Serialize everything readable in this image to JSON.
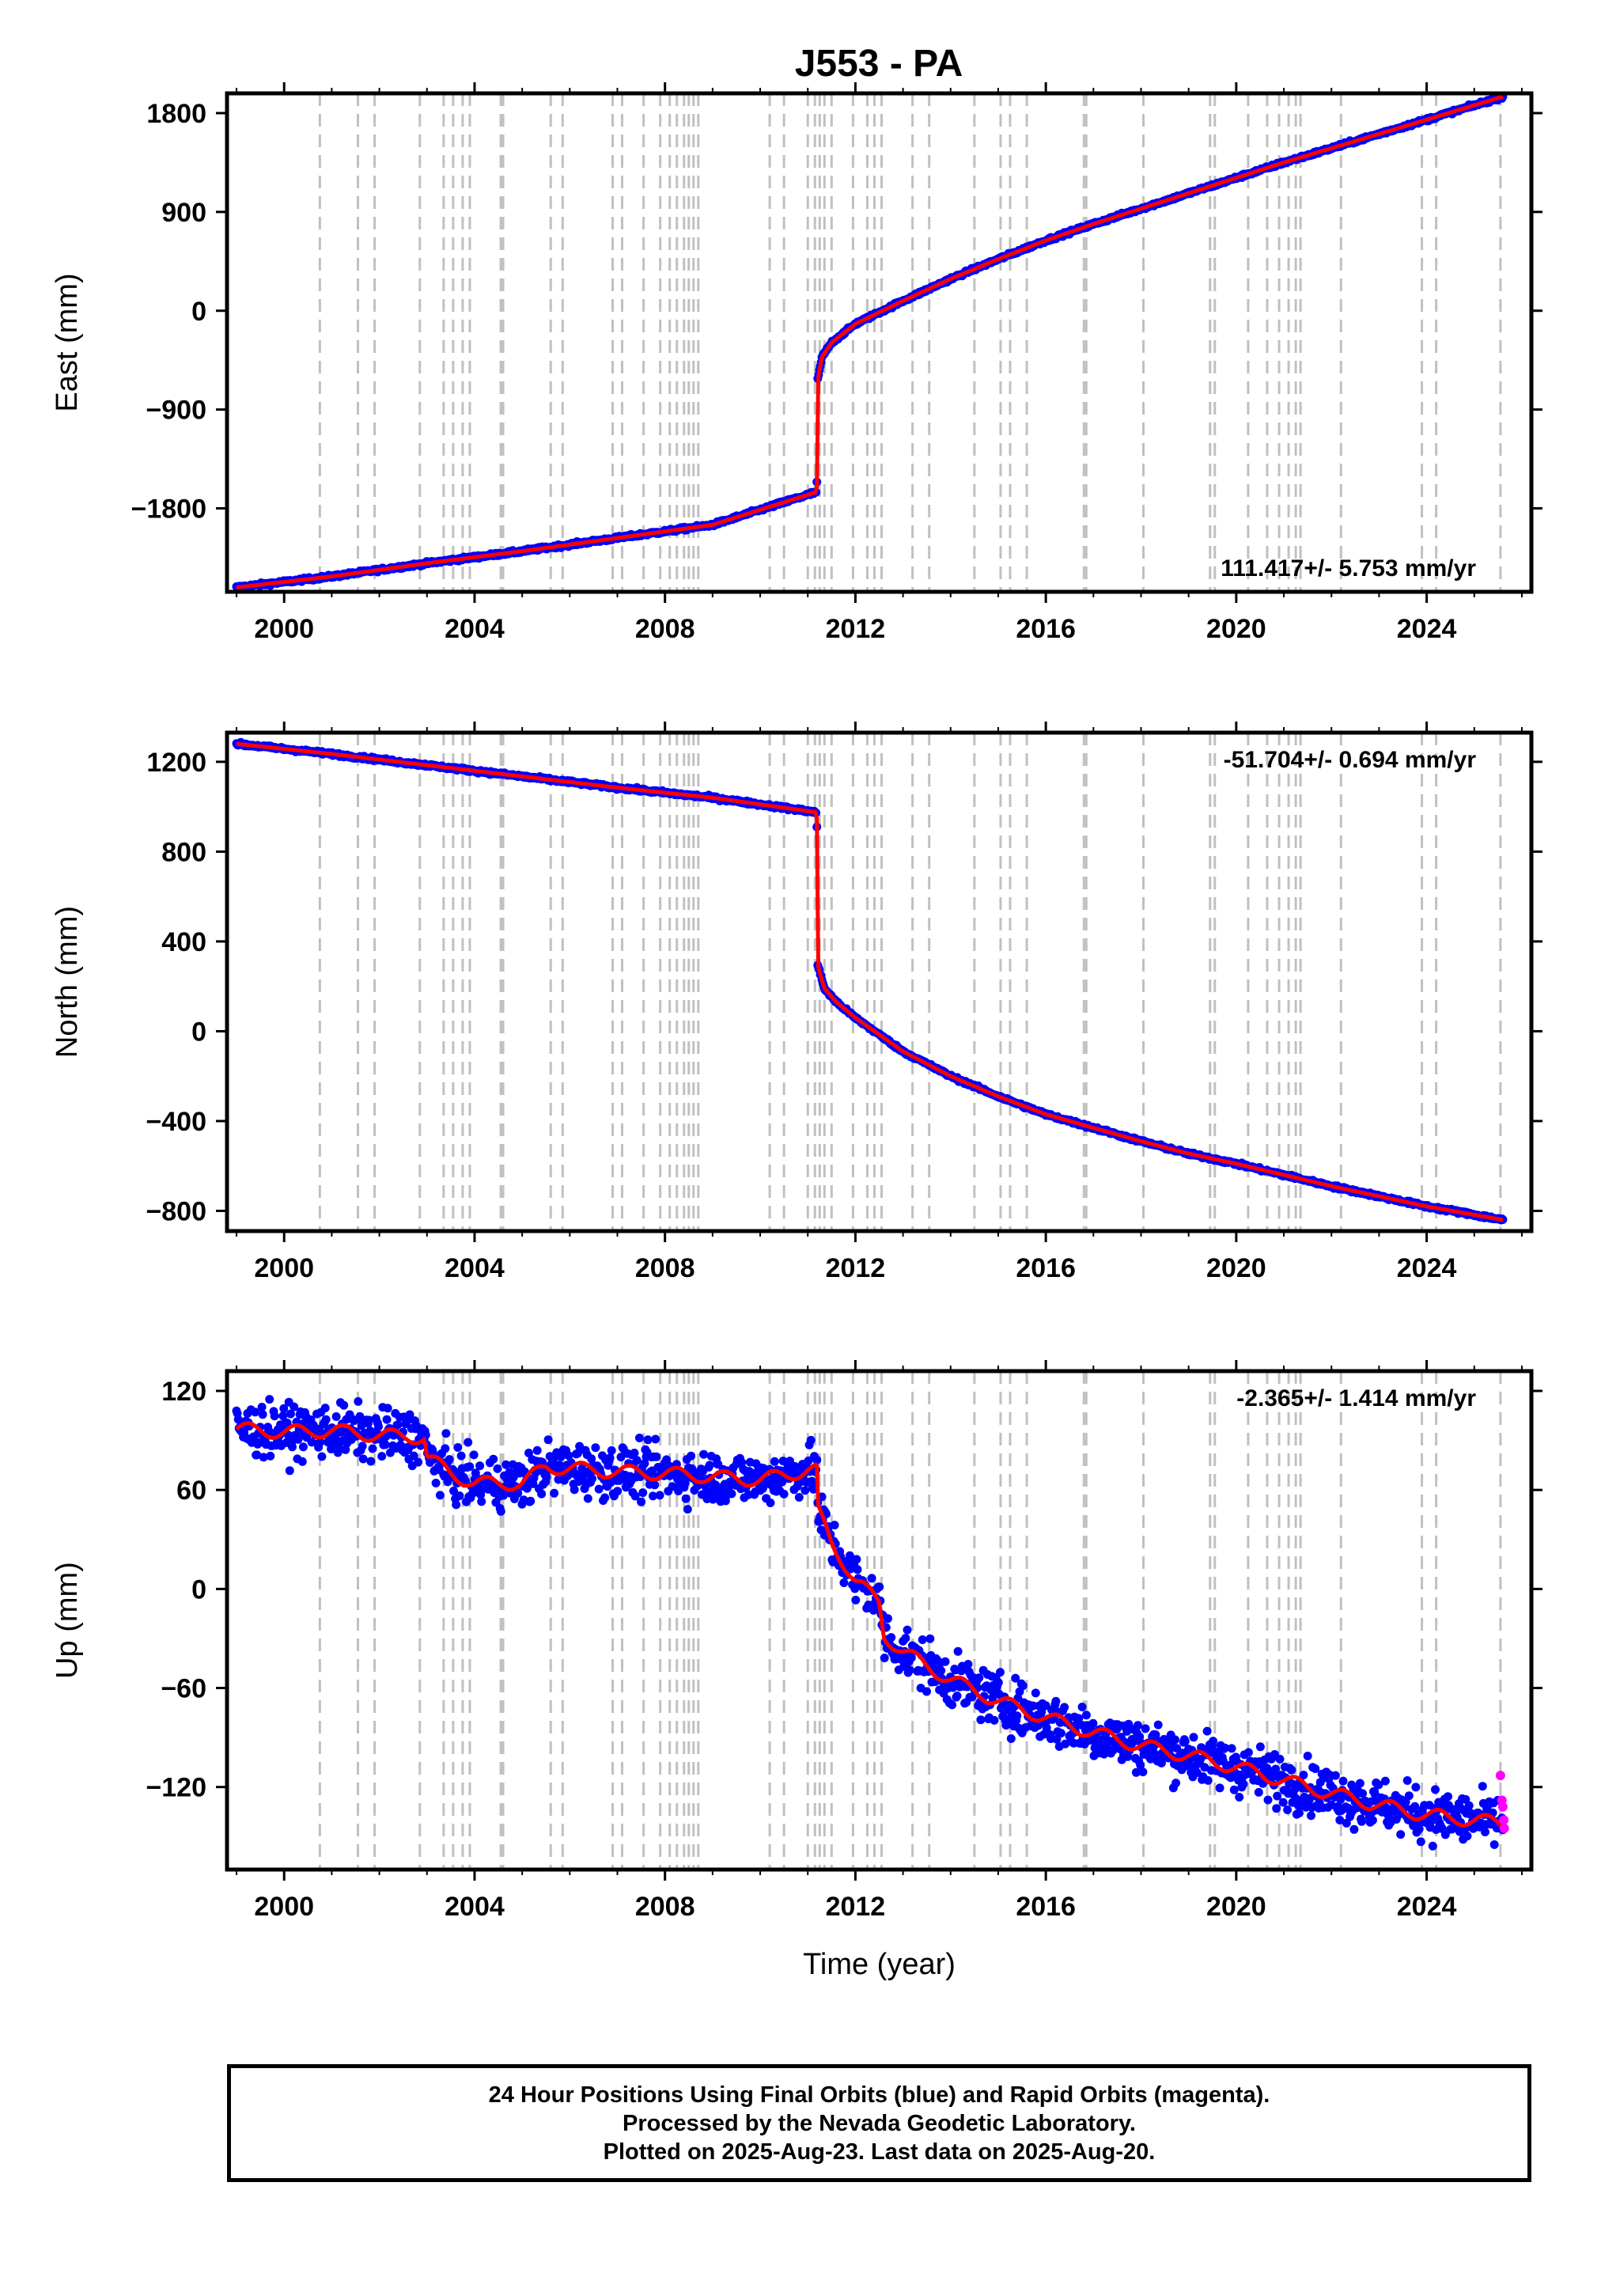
{
  "figure": {
    "title": "J553 - PA",
    "footer_lines": [
      "24 Hour Positions Using Final Orbits (blue) and Rapid Orbits (magenta).",
      "Processed by the Nevada Geodetic Laboratory.",
      "Plotted on 2025-Aug-23. Last data on 2025-Aug-20."
    ],
    "colors": {
      "final_orbits": "#0000ff",
      "rapid_orbits": "#ff00ff",
      "model": "#ff0000",
      "event_lines": "#c0c0c0"
    }
  },
  "chart_data": [
    {
      "type": "scatter",
      "id": "east",
      "ylabel": "East (mm)",
      "xlabel": "",
      "xlim": [
        1998.8,
        2026.2
      ],
      "ylim": [
        -2560,
        1980
      ],
      "xticks": [
        2000,
        2004,
        2008,
        2012,
        2016,
        2020,
        2024
      ],
      "yticks": [
        1800,
        900,
        0,
        -900,
        -1800
      ],
      "ytick_labels": [
        "1800",
        "900",
        "0",
        "−900",
        "−1800"
      ],
      "rate_label": "111.417+/- 5.753 mm/yr",
      "rate_position": "bottom-right",
      "noise": 10,
      "series": [
        {
          "x": [
            1999.0,
            2001.0,
            2003.0,
            2005.0,
            2007.0,
            2009.0,
            2011.19,
            2011.2,
            2011.3,
            2011.5,
            2012.0,
            2013.0,
            2014.0,
            2015.0,
            2016.0,
            2017.0,
            2018.0,
            2019.0,
            2020.0,
            2021.0,
            2022.0,
            2023.0,
            2024.0,
            2025.6
          ],
          "y": [
            -2520,
            -2420,
            -2300,
            -2190,
            -2070,
            -1950,
            -1650,
            -650,
            -420,
            -290,
            -120,
            90,
            290,
            470,
            640,
            790,
            930,
            1070,
            1210,
            1350,
            1480,
            1610,
            1740,
            1950
          ]
        }
      ]
    },
    {
      "type": "scatter",
      "id": "north",
      "ylabel": "North (mm)",
      "xlabel": "",
      "xlim": [
        1998.8,
        2026.2
      ],
      "ylim": [
        -890,
        1330
      ],
      "xticks": [
        2000,
        2004,
        2008,
        2012,
        2016,
        2020,
        2024
      ],
      "yticks": [
        1200,
        800,
        400,
        0,
        -400,
        -800
      ],
      "ytick_labels": [
        "1200",
        "800",
        "400",
        "0",
        "−400",
        "−800"
      ],
      "rate_label": "-51.704+/- 0.694 mm/yr",
      "rate_position": "top-right",
      "noise": 5,
      "series": [
        {
          "x": [
            1999.0,
            2001.0,
            2003.0,
            2005.0,
            2007.0,
            2009.0,
            2011.19,
            2011.2,
            2011.35,
            2011.6,
            2012.0,
            2013.0,
            2014.0,
            2015.0,
            2016.0,
            2017.0,
            2018.0,
            2019.0,
            2020.0,
            2021.0,
            2022.0,
            2023.0,
            2024.0,
            2025.6
          ],
          "y": [
            1280,
            1235,
            1185,
            1135,
            1085,
            1040,
            975,
            300,
            190,
            130,
            60,
            -90,
            -200,
            -290,
            -370,
            -430,
            -490,
            -545,
            -590,
            -640,
            -690,
            -735,
            -780,
            -840
          ]
        }
      ]
    },
    {
      "type": "scatter",
      "id": "up",
      "ylabel": "Up (mm)",
      "xlabel": "Time (year)",
      "xlim": [
        1998.8,
        2026.2
      ],
      "ylim": [
        -170,
        132
      ],
      "xticks": [
        2000,
        2004,
        2008,
        2012,
        2016,
        2020,
        2024
      ],
      "yticks": [
        120,
        60,
        0,
        -60,
        -120
      ],
      "ytick_labels": [
        "120",
        "60",
        "0",
        "−60",
        "−120"
      ],
      "rate_label": "-2.365+/- 1.414 mm/yr",
      "rate_position": "top-right",
      "noise": 11,
      "series": [
        {
          "x": [
            1999.0,
            2000.0,
            2001.0,
            2002.0,
            2002.95,
            2003.0,
            2003.5,
            2004.0,
            2005.0,
            2005.5,
            2006.0,
            2007.0,
            2008.0,
            2009.0,
            2010.0,
            2011.0,
            2011.19,
            2011.2,
            2011.5,
            2012.0,
            2012.5,
            2012.6,
            2013.0,
            2014.0,
            2015.0,
            2016.0,
            2017.0,
            2018.0,
            2019.0,
            2020.0,
            2021.0,
            2022.0,
            2023.0,
            2024.0,
            2025.6
          ],
          "y": [
            97,
            95,
            96,
            93,
            92,
            80,
            70,
            64,
            64,
            74,
            73,
            71,
            70,
            68,
            66,
            72,
            72,
            48,
            28,
            5,
            -8,
            -28,
            -38,
            -55,
            -68,
            -78,
            -87,
            -95,
            -101,
            -108,
            -116,
            -124,
            -131,
            -137,
            -142
          ]
        }
      ],
      "rapid_points": {
        "x": [
          2025.55,
          2025.58,
          2025.6,
          2025.62,
          2025.63
        ],
        "y": [
          -113,
          -128,
          -132,
          -140,
          -145
        ]
      }
    }
  ],
  "event_lines": [
    2000.75,
    2001.55,
    2001.9,
    2002.85,
    2003.35,
    2003.55,
    2003.75,
    2003.9,
    2004.55,
    2004.6,
    2005.6,
    2005.85,
    2006.9,
    2007.1,
    2007.55,
    2007.9,
    2008.1,
    2008.25,
    2008.4,
    2008.5,
    2008.6,
    2008.7,
    2010.2,
    2010.5,
    2011.0,
    2011.15,
    2011.25,
    2011.35,
    2011.5,
    2011.95,
    2012.25,
    2012.4,
    2012.55,
    2013.2,
    2013.55,
    2014.5,
    2015.05,
    2015.25,
    2015.6,
    2016.8,
    2016.85,
    2018.05,
    2019.45,
    2019.55,
    2020.25,
    2020.65,
    2020.9,
    2021.1,
    2021.25,
    2021.35,
    2022.2,
    2023.9,
    2024.2,
    2025.55
  ]
}
